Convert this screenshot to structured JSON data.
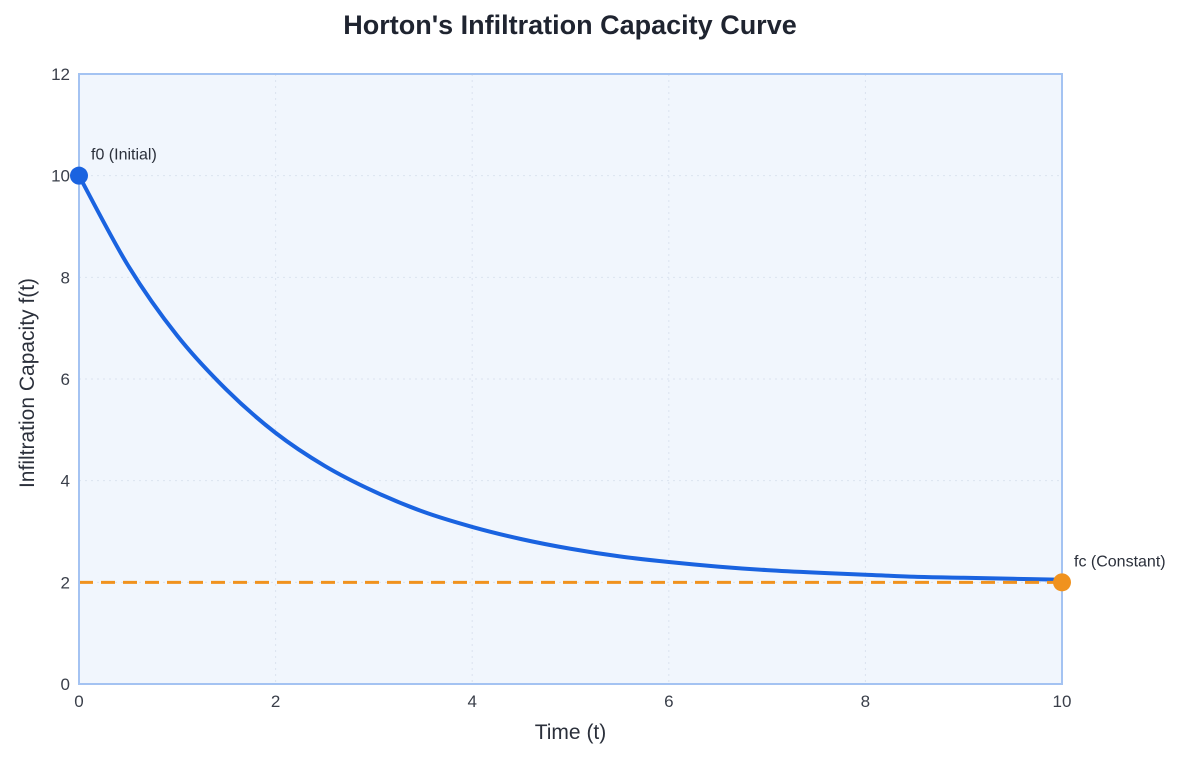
{
  "chart_data": {
    "type": "line",
    "title": "Horton's Infiltration Capacity Curve",
    "xlabel": "Time (t)",
    "ylabel": "Infiltration Capacity f(t)",
    "xlim": [
      0,
      10
    ],
    "ylim": [
      0,
      12
    ],
    "xticks": [
      0,
      2,
      4,
      6,
      8,
      10
    ],
    "yticks": [
      0,
      2,
      4,
      6,
      8,
      10,
      12
    ],
    "grid": true,
    "background_color": "#f1f6fd",
    "frame_color": "#a4c3f2",
    "series": [
      {
        "name": "",
        "style": "solid",
        "color": "#1a63e0",
        "x": [
          0,
          0.5,
          1,
          1.5,
          2,
          2.5,
          3,
          3.5,
          4,
          4.5,
          5,
          5.5,
          6,
          6.5,
          7,
          7.5,
          8,
          8.5,
          9,
          9.5,
          10
        ],
        "y": [
          10,
          8.23,
          6.85,
          5.79,
          4.94,
          4.29,
          3.79,
          3.39,
          3.09,
          2.85,
          2.66,
          2.51,
          2.4,
          2.31,
          2.24,
          2.19,
          2.15,
          2.11,
          2.09,
          2.07,
          2.05
        ]
      },
      {
        "name": "",
        "style": "dashed",
        "color": "#f0921e",
        "x": [
          0,
          10
        ],
        "y": [
          2,
          2
        ]
      }
    ],
    "annotations": [
      {
        "text": "f0 (Initial)",
        "x": 0,
        "y": 10,
        "color": "#1a63e0",
        "position": "above-right"
      },
      {
        "text": "fc (Constant)",
        "x": 10,
        "y": 2,
        "color": "#f0921e",
        "position": "above-right"
      }
    ]
  }
}
